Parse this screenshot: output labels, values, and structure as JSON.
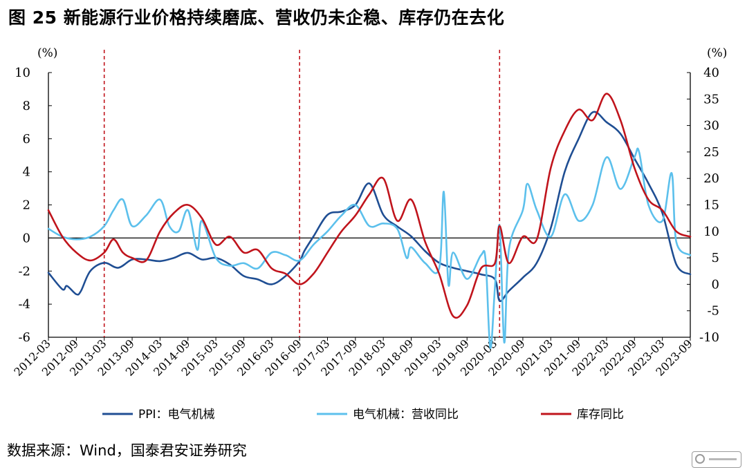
{
  "title": "图 25 新能源行业价格持续磨底、营收仍未企稳、库存仍在去化",
  "source": "数据来源：Wind，国泰君安证券研究",
  "chart_data": {
    "type": "line",
    "left_axis": {
      "unit": "(%)",
      "ylim": [
        -6,
        10
      ],
      "ticks": [
        "10",
        "8",
        "6",
        "4",
        "2",
        "0",
        "-2",
        "-4",
        "-6"
      ]
    },
    "right_axis": {
      "unit": "(%)",
      "ylim": [
        -10,
        40
      ],
      "ticks": [
        "40",
        "35",
        "30",
        "25",
        "20",
        "15",
        "10",
        "5",
        "0",
        "-5",
        "-10"
      ]
    },
    "x_ticks": [
      "2012-03",
      "2012-09",
      "2013-03",
      "2013-09",
      "2014-03",
      "2014-09",
      "2015-03",
      "2015-09",
      "2016-03",
      "2016-09",
      "2017-03",
      "2017-09",
      "2018-03",
      "2018-09",
      "2019-03",
      "2019-09",
      "2020-03",
      "2020-09",
      "2021-03",
      "2021-09",
      "2022-03",
      "2022-09",
      "2023-03",
      "2023-09"
    ],
    "vlines": [
      "2013-03",
      "2016-09",
      "2020-04"
    ],
    "grid": false,
    "legend_position": "bottom",
    "series": [
      {
        "name": "PPI：电气机械",
        "axis": "left",
        "color": "#1f4e93",
        "points": [
          [
            "2012-03",
            -2.1
          ],
          [
            "2012-06",
            -3.1
          ],
          [
            "2012-07",
            -2.9
          ],
          [
            "2012-09",
            -3.4
          ],
          [
            "2012-10",
            -3.2
          ],
          [
            "2012-12",
            -2.0
          ],
          [
            "2013-03",
            -1.5
          ],
          [
            "2013-06",
            -1.8
          ],
          [
            "2013-09",
            -1.3
          ],
          [
            "2013-12",
            -1.3
          ],
          [
            "2014-03",
            -1.4
          ],
          [
            "2014-06",
            -1.2
          ],
          [
            "2014-09",
            -0.9
          ],
          [
            "2014-12",
            -1.3
          ],
          [
            "2015-03",
            -1.2
          ],
          [
            "2015-06",
            -1.6
          ],
          [
            "2015-09",
            -2.3
          ],
          [
            "2015-12",
            -2.5
          ],
          [
            "2016-03",
            -2.8
          ],
          [
            "2016-06",
            -2.3
          ],
          [
            "2016-09",
            -1.4
          ],
          [
            "2016-10",
            -0.8
          ],
          [
            "2016-12",
            0.1
          ],
          [
            "2017-03",
            1.4
          ],
          [
            "2017-06",
            1.6
          ],
          [
            "2017-09",
            2.0
          ],
          [
            "2017-12",
            3.3
          ],
          [
            "2018-03",
            1.4
          ],
          [
            "2018-06",
            0.7
          ],
          [
            "2018-09",
            0.1
          ],
          [
            "2018-12",
            -0.8
          ],
          [
            "2019-03",
            -1.5
          ],
          [
            "2019-06",
            -1.8
          ],
          [
            "2019-09",
            -2.0
          ],
          [
            "2019-12",
            -2.2
          ],
          [
            "2020-03",
            -2.5
          ],
          [
            "2020-04",
            -3.8
          ],
          [
            "2020-06",
            -3.2
          ],
          [
            "2020-09",
            -2.4
          ],
          [
            "2020-12",
            -1.5
          ],
          [
            "2021-03",
            0.6
          ],
          [
            "2021-06",
            4.0
          ],
          [
            "2021-09",
            6.0
          ],
          [
            "2021-12",
            7.6
          ],
          [
            "2022-03",
            7.0
          ],
          [
            "2022-06",
            6.3
          ],
          [
            "2022-09",
            4.8
          ],
          [
            "2022-12",
            3.3
          ],
          [
            "2023-03",
            1.5
          ],
          [
            "2023-06",
            -1.6
          ],
          [
            "2023-09",
            -2.2
          ]
        ]
      },
      {
        "name": "电气机械：营收同比",
        "axis": "right",
        "color": "#5cc0ec",
        "points": [
          [
            "2012-03",
            10.5
          ],
          [
            "2012-06",
            9.0
          ],
          [
            "2012-09",
            8.5
          ],
          [
            "2012-12",
            9.0
          ],
          [
            "2013-03",
            11.0
          ],
          [
            "2013-05",
            14.0
          ],
          [
            "2013-07",
            16.0
          ],
          [
            "2013-09",
            11.0
          ],
          [
            "2013-12",
            13.0
          ],
          [
            "2014-03",
            16.0
          ],
          [
            "2014-05",
            11.0
          ],
          [
            "2014-07",
            10.0
          ],
          [
            "2014-09",
            14.0
          ],
          [
            "2014-11",
            6.5
          ],
          [
            "2014-12",
            12.0
          ],
          [
            "2015-03",
            5.0
          ],
          [
            "2015-06",
            3.5
          ],
          [
            "2015-09",
            4.0
          ],
          [
            "2015-12",
            3.0
          ],
          [
            "2016-03",
            6.0
          ],
          [
            "2016-06",
            5.5
          ],
          [
            "2016-09",
            4.5
          ],
          [
            "2016-12",
            7.5
          ],
          [
            "2017-03",
            10.0
          ],
          [
            "2017-06",
            13.0
          ],
          [
            "2017-09",
            15.0
          ],
          [
            "2017-12",
            11.0
          ],
          [
            "2018-03",
            11.5
          ],
          [
            "2018-06",
            10.5
          ],
          [
            "2018-08",
            5.0
          ],
          [
            "2018-09",
            7.0
          ],
          [
            "2018-12",
            4.0
          ],
          [
            "2019-03",
            3.0
          ],
          [
            "2019-04",
            17.5
          ],
          [
            "2019-05",
            0.0
          ],
          [
            "2019-06",
            6.0
          ],
          [
            "2019-09",
            1.0
          ],
          [
            "2019-12",
            5.5
          ],
          [
            "2020-01",
            4.5
          ],
          [
            "2020-02",
            -12.0
          ],
          [
            "2020-03",
            -0.5
          ],
          [
            "2020-04",
            11.0
          ],
          [
            "2020-05",
            -11.0
          ],
          [
            "2020-06",
            6.5
          ],
          [
            "2020-09",
            14.0
          ],
          [
            "2020-10",
            19.0
          ],
          [
            "2020-12",
            14.0
          ],
          [
            "2021-03",
            9.0
          ],
          [
            "2021-06",
            17.0
          ],
          [
            "2021-09",
            12.0
          ],
          [
            "2021-12",
            15.0
          ],
          [
            "2022-03",
            24.0
          ],
          [
            "2022-06",
            18.0
          ],
          [
            "2022-09",
            24.0
          ],
          [
            "2022-10",
            25.0
          ],
          [
            "2022-12",
            15.0
          ],
          [
            "2023-03",
            12.0
          ],
          [
            "2023-05",
            21.0
          ],
          [
            "2023-06",
            8.0
          ],
          [
            "2023-09",
            5.5
          ]
        ]
      },
      {
        "name": "库存同比",
        "axis": "right",
        "color": "#c0141c",
        "points": [
          [
            "2012-03",
            14.0
          ],
          [
            "2012-06",
            9.0
          ],
          [
            "2012-09",
            6.0
          ],
          [
            "2012-12",
            4.5
          ],
          [
            "2013-03",
            6.0
          ],
          [
            "2013-05",
            8.5
          ],
          [
            "2013-07",
            6.0
          ],
          [
            "2013-09",
            5.0
          ],
          [
            "2013-12",
            4.5
          ],
          [
            "2014-03",
            10.0
          ],
          [
            "2014-06",
            13.5
          ],
          [
            "2014-09",
            15.0
          ],
          [
            "2014-12",
            12.5
          ],
          [
            "2015-03",
            7.5
          ],
          [
            "2015-06",
            9.0
          ],
          [
            "2015-09",
            6.0
          ],
          [
            "2015-12",
            6.5
          ],
          [
            "2016-03",
            3.0
          ],
          [
            "2016-06",
            2.0
          ],
          [
            "2016-09",
            0.0
          ],
          [
            "2016-12",
            2.0
          ],
          [
            "2017-03",
            6.0
          ],
          [
            "2017-06",
            10.0
          ],
          [
            "2017-09",
            13.0
          ],
          [
            "2017-12",
            17.0
          ],
          [
            "2018-03",
            20.0
          ],
          [
            "2018-06",
            12.0
          ],
          [
            "2018-09",
            16.0
          ],
          [
            "2018-12",
            8.0
          ],
          [
            "2019-03",
            2.0
          ],
          [
            "2019-06",
            -6.0
          ],
          [
            "2019-09",
            -4.0
          ],
          [
            "2019-12",
            3.0
          ],
          [
            "2020-03",
            4.0
          ],
          [
            "2020-04",
            11.0
          ],
          [
            "2020-06",
            4.0
          ],
          [
            "2020-09",
            9.0
          ],
          [
            "2020-12",
            8.5
          ],
          [
            "2021-03",
            22.0
          ],
          [
            "2021-06",
            29.0
          ],
          [
            "2021-09",
            33.0
          ],
          [
            "2021-12",
            31.0
          ],
          [
            "2022-03",
            36.0
          ],
          [
            "2022-06",
            31.0
          ],
          [
            "2022-09",
            22.0
          ],
          [
            "2022-12",
            16.0
          ],
          [
            "2023-03",
            14.0
          ],
          [
            "2023-06",
            10.0
          ],
          [
            "2023-09",
            9.0
          ]
        ]
      }
    ]
  }
}
